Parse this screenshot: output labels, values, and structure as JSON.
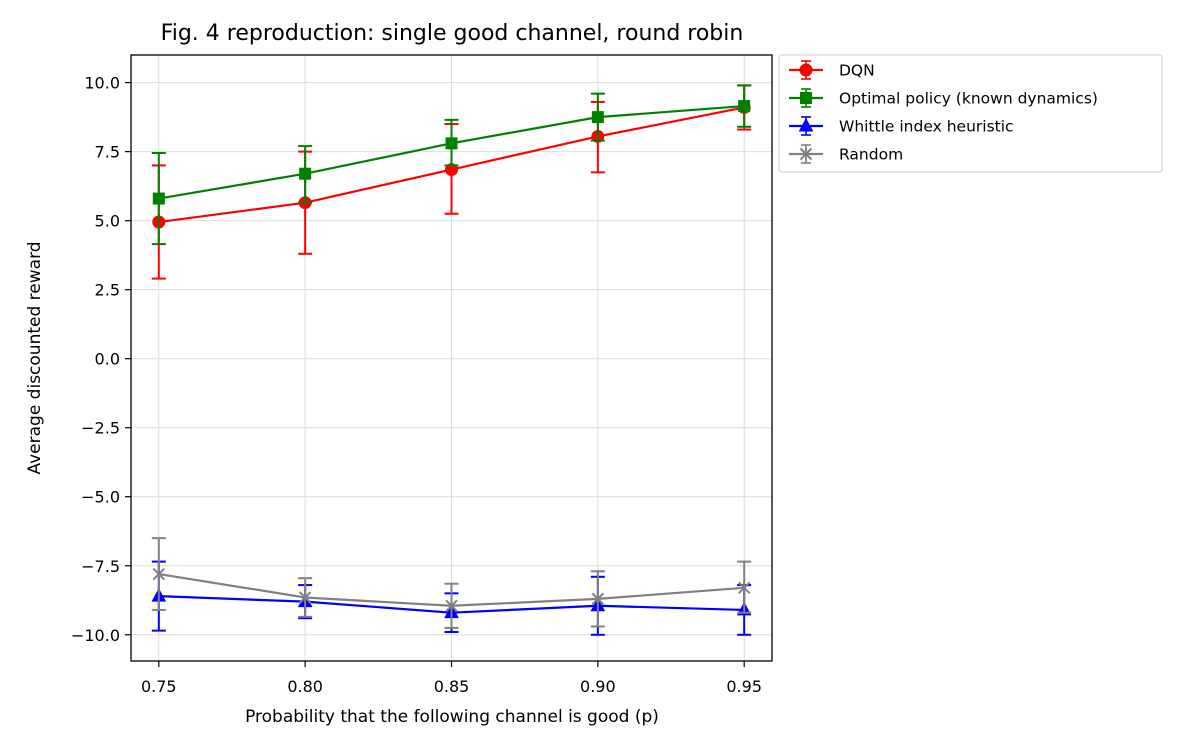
{
  "chart_data": {
    "type": "line",
    "title": "Fig. 4 reproduction: single good channel, round robin",
    "xlabel": "Probability that the following channel is good (p)",
    "ylabel": "Average discounted reward",
    "x": [
      0.75,
      0.8,
      0.85,
      0.9,
      0.95
    ],
    "x_ticks": [
      "0.75",
      "0.80",
      "0.85",
      "0.90",
      "0.95"
    ],
    "xlim": [
      0.7405,
      0.9595
    ],
    "ylim": [
      -10.95,
      11.0
    ],
    "y_ticks": [
      10.0,
      7.5,
      5.0,
      2.5,
      0.0,
      -2.5,
      -5.0,
      -7.5,
      -10.0
    ],
    "y_tick_labels": [
      "10.0",
      "7.5",
      "5.0",
      "2.5",
      "0.0",
      "−2.5",
      "−5.0",
      "−7.5",
      "−10.0"
    ],
    "grid": true,
    "legend_position": "outside-upper-right",
    "series": [
      {
        "name": "DQN",
        "color": "#ff0000",
        "marker": "circle",
        "values": [
          4.95,
          5.65,
          6.85,
          8.05,
          9.1
        ],
        "err_low": [
          2.9,
          3.8,
          5.25,
          6.75,
          8.3
        ],
        "err_high": [
          7.0,
          7.5,
          8.5,
          9.3,
          9.9
        ]
      },
      {
        "name": "Optimal policy (known dynamics)",
        "color": "#008000",
        "marker": "square",
        "values": [
          5.8,
          6.7,
          7.8,
          8.75,
          9.15
        ],
        "err_low": [
          4.15,
          5.65,
          7.0,
          7.9,
          8.4
        ],
        "err_high": [
          7.45,
          7.7,
          8.65,
          9.6,
          9.9
        ]
      },
      {
        "name": "Whittle index heuristic",
        "color": "#0000ff",
        "marker": "triangle",
        "values": [
          -8.6,
          -8.8,
          -9.2,
          -8.95,
          -9.1
        ],
        "err_low": [
          -9.85,
          -9.4,
          -9.9,
          -10.0,
          -10.0
        ],
        "err_high": [
          -7.35,
          -8.2,
          -8.5,
          -7.9,
          -8.2
        ]
      },
      {
        "name": "Random",
        "color": "#808080",
        "marker": "x",
        "values": [
          -7.8,
          -8.65,
          -8.95,
          -8.7,
          -8.3
        ],
        "err_low": [
          -9.1,
          -9.35,
          -9.75,
          -9.7,
          -9.2
        ],
        "err_high": [
          -6.5,
          -7.95,
          -8.15,
          -7.7,
          -7.35
        ]
      }
    ]
  }
}
